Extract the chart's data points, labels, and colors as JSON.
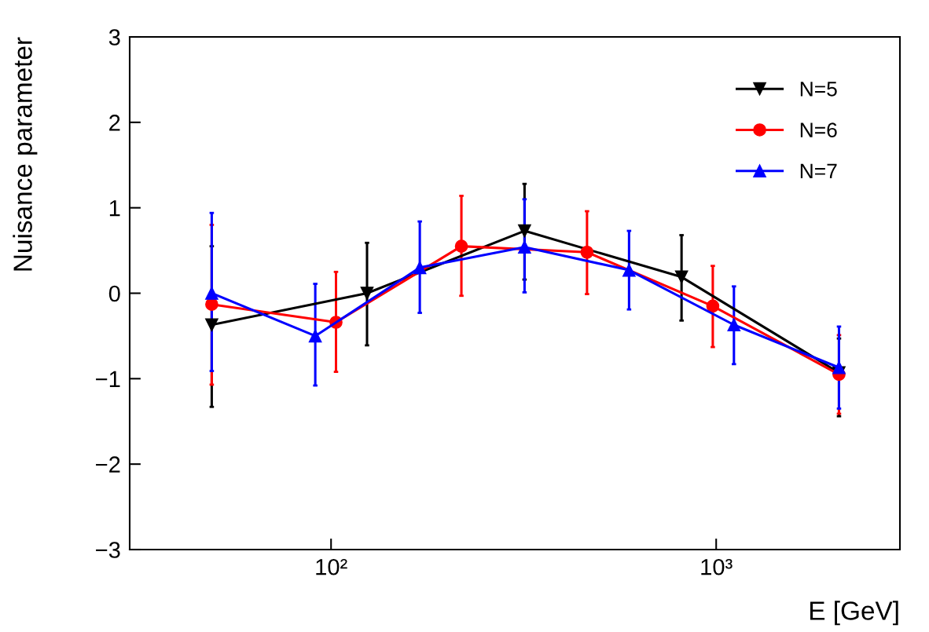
{
  "chart_data": {
    "type": "line",
    "xlabel": "E [GeV]",
    "ylabel": "Nuisance parameter",
    "log": "x",
    "xlim": [
      30,
      3000
    ],
    "xticks": [
      {
        "value": 100,
        "label": "10²"
      },
      {
        "value": 1000,
        "label": "10³"
      }
    ],
    "ylim": [
      -3,
      3
    ],
    "yticks": [
      -3,
      -2,
      -1,
      0,
      1,
      2,
      3
    ],
    "grid": false,
    "legend": "top right",
    "series": [
      {
        "name": "N=5",
        "color": "#000000",
        "marker": "triangle-down",
        "x": [
          49,
          124,
          318,
          813,
          2084
        ],
        "values": [
          -0.37,
          0.0,
          0.73,
          0.19,
          -0.93
        ],
        "errors": [
          [
            -1.33,
            0.55
          ],
          [
            -0.61,
            0.59
          ],
          [
            0.16,
            1.28
          ],
          [
            -0.32,
            0.68
          ],
          [
            -1.44,
            -0.53
          ]
        ]
      },
      {
        "name": "N=6",
        "color": "#ff0000",
        "marker": "circle",
        "x": [
          49,
          103,
          218,
          462,
          980,
          2084
        ],
        "values": [
          -0.13,
          -0.34,
          0.55,
          0.48,
          -0.15,
          -0.95
        ],
        "errors": [
          [
            -1.07,
            0.8
          ],
          [
            -0.92,
            0.25
          ],
          [
            -0.03,
            1.14
          ],
          [
            -0.01,
            0.96
          ],
          [
            -0.63,
            0.32
          ],
          [
            -1.41,
            -0.49
          ]
        ]
      },
      {
        "name": "N=7",
        "color": "#0000ff",
        "marker": "triangle",
        "x": [
          49,
          91,
          170,
          318,
          594,
          1112,
          2084
        ],
        "values": [
          0.0,
          -0.5,
          0.3,
          0.54,
          0.27,
          -0.37,
          -0.87
        ],
        "errors": [
          [
            -0.91,
            0.94
          ],
          [
            -1.08,
            0.11
          ],
          [
            -0.23,
            0.84
          ],
          [
            0.01,
            1.1
          ],
          [
            -0.19,
            0.73
          ],
          [
            -0.83,
            0.08
          ],
          [
            -1.35,
            -0.39
          ]
        ]
      }
    ]
  }
}
